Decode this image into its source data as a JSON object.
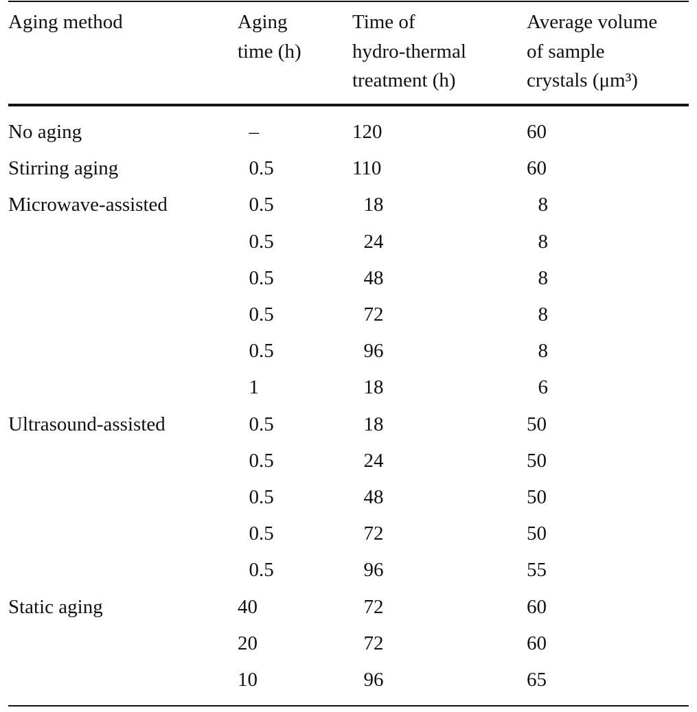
{
  "table": {
    "headers": [
      [
        "Aging method"
      ],
      [
        "Aging",
        "time (h)"
      ],
      [
        "Time of",
        "hydro-thermal",
        "treatment (h)"
      ],
      [
        "Average volume",
        "of sample",
        "crystals (μm³)"
      ]
    ],
    "rows": [
      [
        "No aging",
        "–",
        120,
        60
      ],
      [
        "Stirring aging",
        0.5,
        110,
        60
      ],
      [
        "Microwave-assisted",
        0.5,
        18,
        8
      ],
      [
        null,
        0.5,
        24,
        8
      ],
      [
        null,
        0.5,
        48,
        8
      ],
      [
        null,
        0.5,
        72,
        8
      ],
      [
        null,
        0.5,
        96,
        8
      ],
      [
        null,
        1,
        18,
        6
      ],
      [
        "Ultrasound-assisted",
        0.5,
        18,
        50
      ],
      [
        null,
        0.5,
        24,
        50
      ],
      [
        null,
        0.5,
        48,
        50
      ],
      [
        null,
        0.5,
        72,
        50
      ],
      [
        null,
        0.5,
        96,
        55
      ],
      [
        "Static aging",
        40,
        72,
        60
      ],
      [
        null,
        20,
        72,
        60
      ],
      [
        null,
        10,
        96,
        65
      ]
    ]
  }
}
